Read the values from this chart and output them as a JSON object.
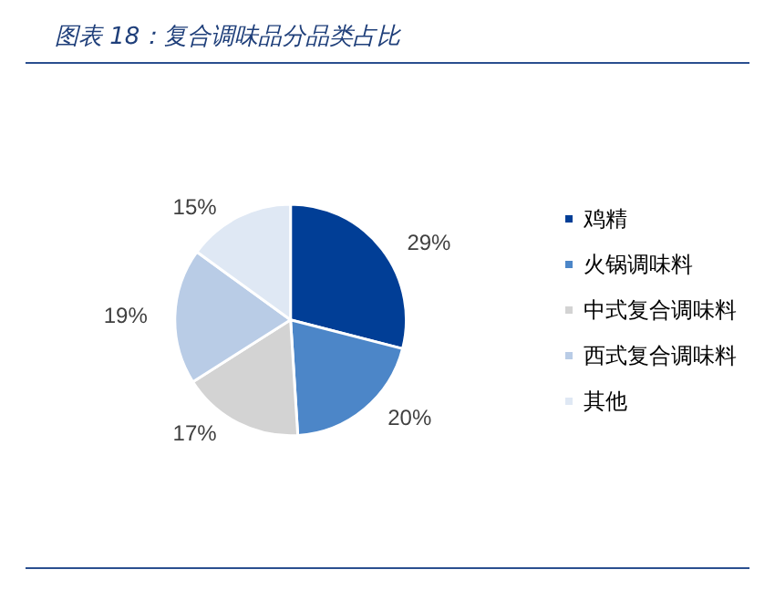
{
  "chart_data": {
    "type": "pie",
    "title": "图表 18：复合调味品分品类占比",
    "categories": [
      "鸡精",
      "火锅调味料",
      "中式复合调味料",
      "西式复合调味料",
      "其他"
    ],
    "values": [
      29,
      20,
      17,
      19,
      15
    ],
    "colors": [
      "#013e96",
      "#4c86c8",
      "#d3d3d3",
      "#b9cce6",
      "#dfe8f4"
    ],
    "value_labels": [
      "29%",
      "20%",
      "17%",
      "19%",
      "15%"
    ],
    "legend": "right"
  }
}
